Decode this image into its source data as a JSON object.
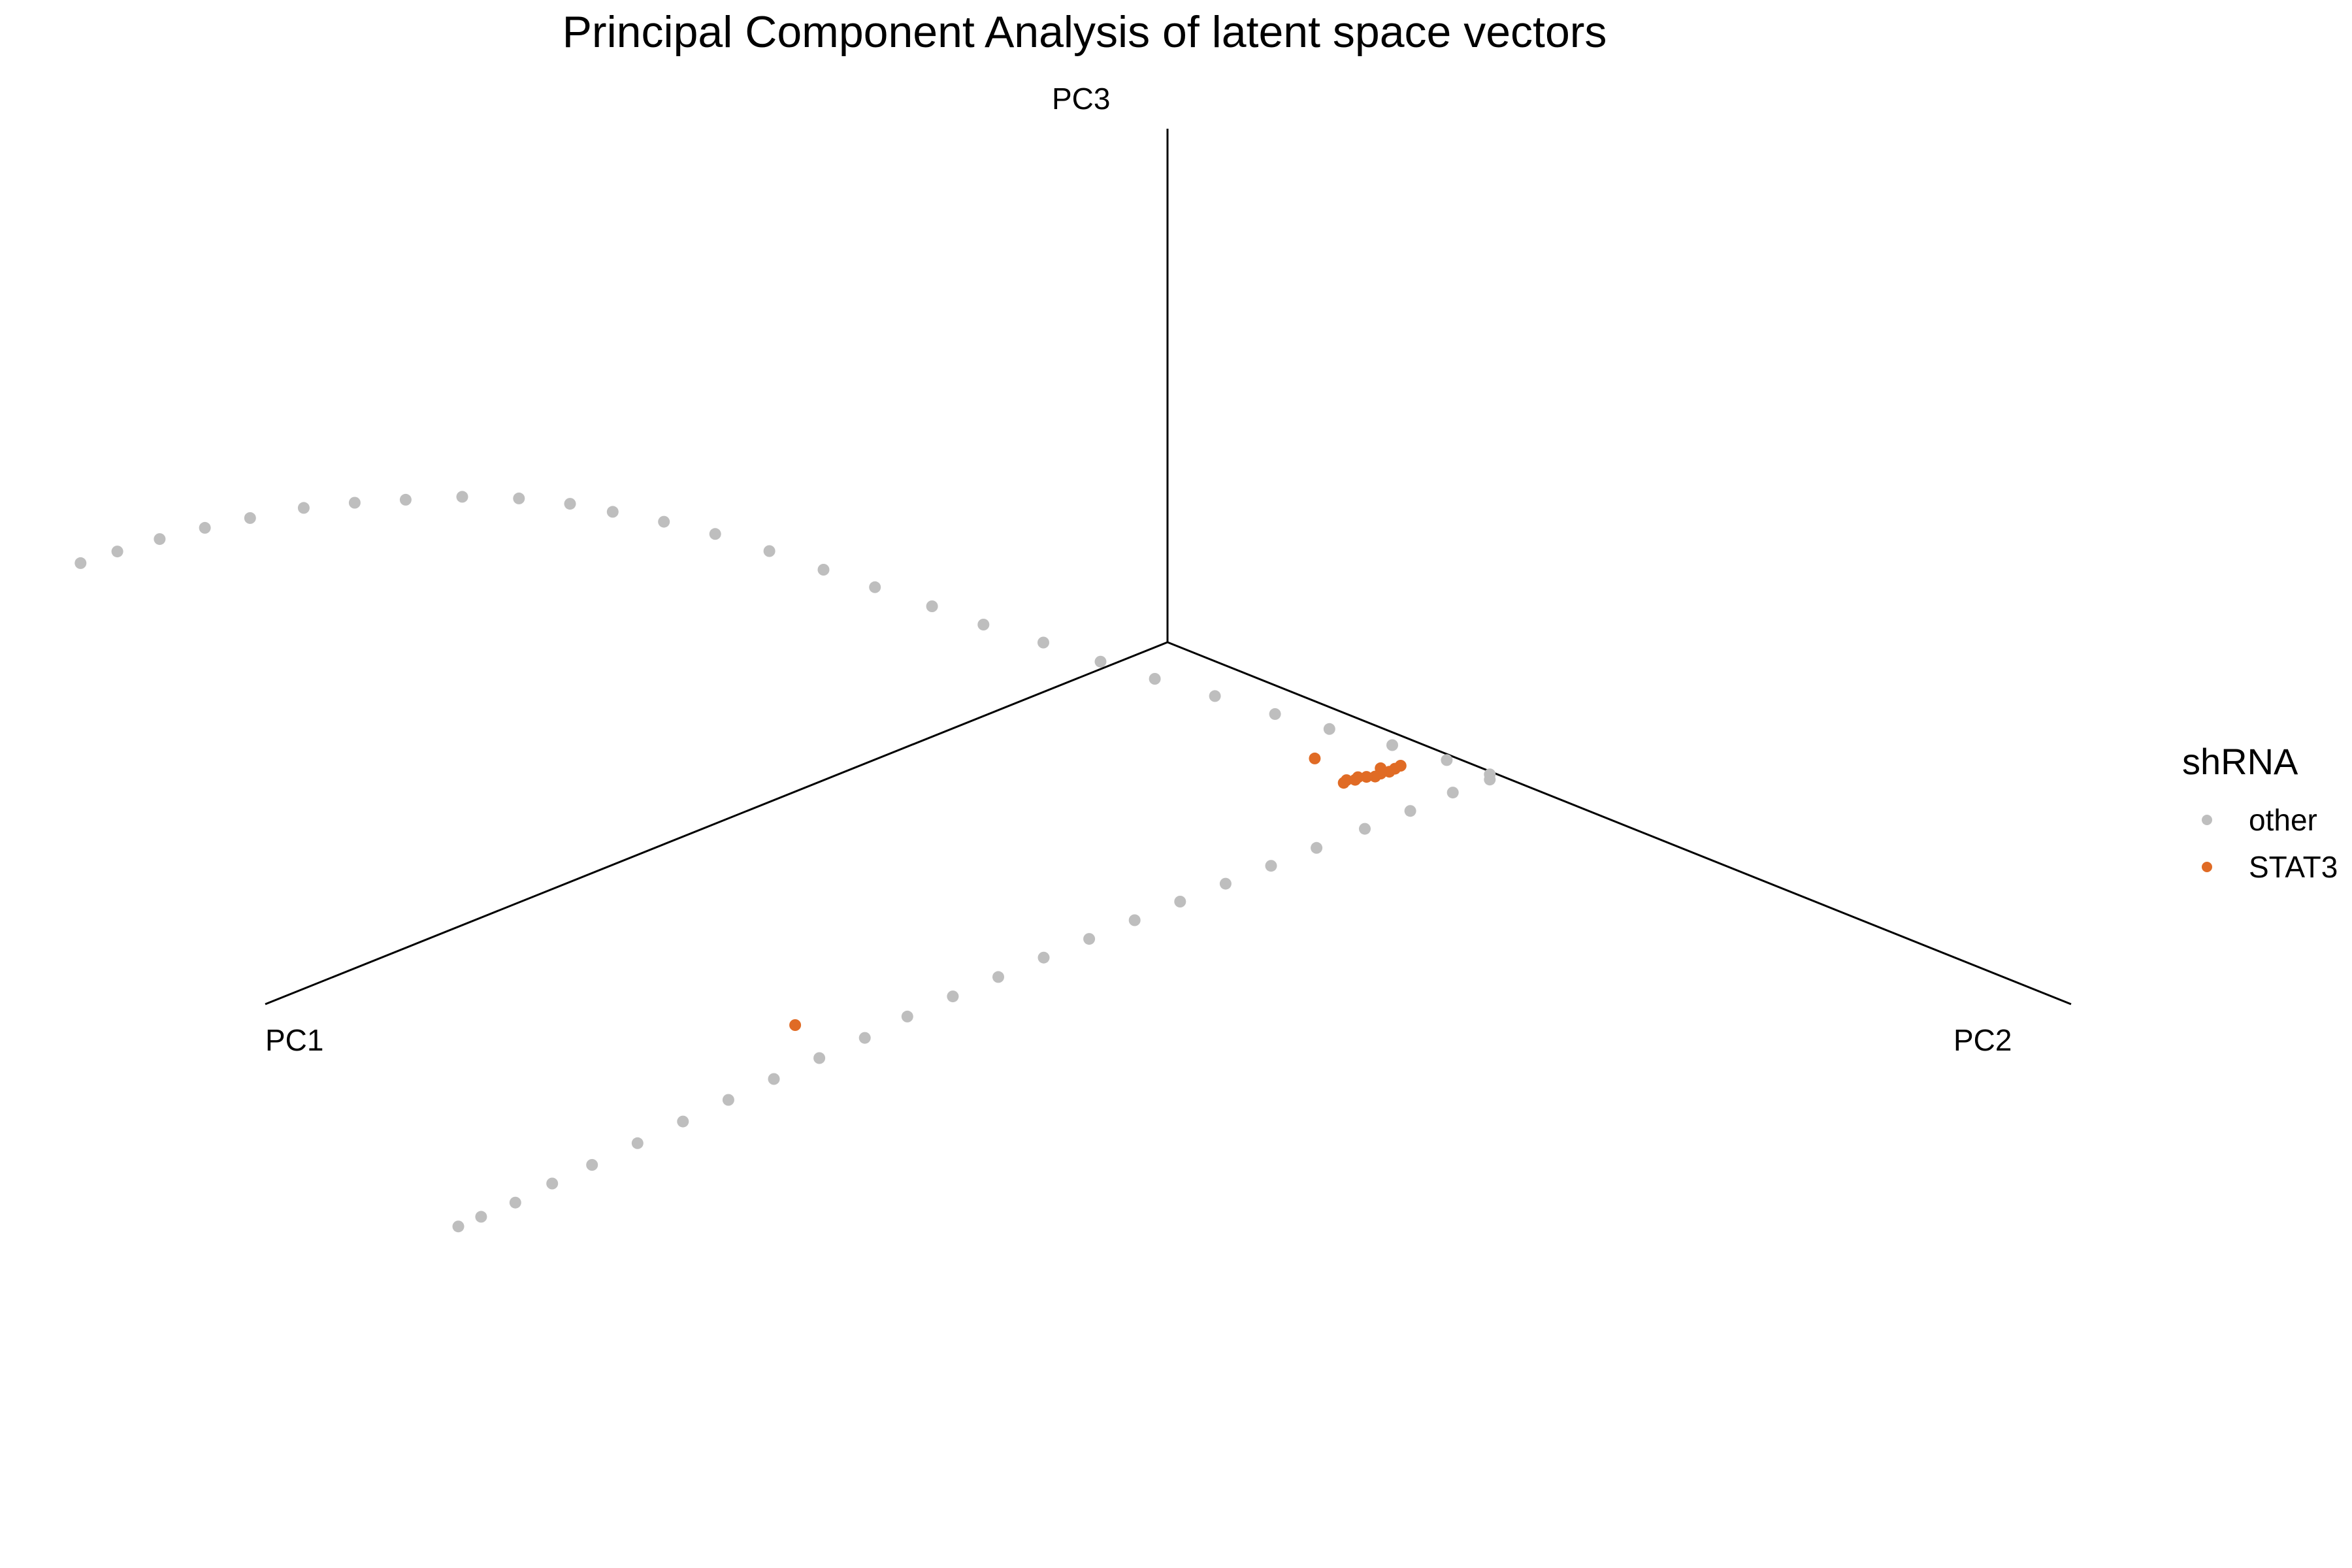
{
  "chart_data": {
    "type": "scatter",
    "projection": "3d",
    "title": "Principal Component Analysis of latent space vectors",
    "axes": {
      "x": "PC1",
      "y": "PC2",
      "z": "PC3"
    },
    "grid": false,
    "legend": {
      "title": "shRNA",
      "placement": "right",
      "entries": [
        {
          "label": "other",
          "color": "#bebebe"
        },
        {
          "label": "STAT3",
          "color": "#e06b25"
        }
      ]
    },
    "series": [
      {
        "name": "other",
        "color": "#bebebe",
        "points": [
          [
            0.03,
            1.12,
            0.05
          ],
          [
            0.12,
            1.06,
            0.28
          ],
          [
            0.24,
            0.99,
            0.55
          ],
          [
            0.39,
            0.92,
            0.88
          ],
          [
            0.52,
            0.86,
            1.18
          ],
          [
            0.66,
            0.79,
            1.52
          ],
          [
            0.8,
            0.72,
            1.85
          ],
          [
            0.93,
            0.66,
            2.18
          ],
          [
            1.07,
            0.6,
            2.55
          ],
          [
            1.22,
            0.54,
            2.92
          ],
          [
            1.35,
            0.49,
            3.28
          ],
          [
            1.49,
            0.43,
            3.65
          ],
          [
            1.62,
            0.38,
            4.0
          ],
          [
            1.76,
            0.33,
            4.38
          ],
          [
            1.9,
            0.28,
            4.74
          ],
          [
            2.04,
            0.24,
            5.05
          ],
          [
            2.18,
            0.2,
            5.33
          ],
          [
            2.3,
            0.17,
            5.57
          ],
          [
            2.45,
            0.14,
            5.82
          ],
          [
            2.62,
            0.11,
            6.05
          ],
          [
            2.8,
            0.09,
            6.25
          ],
          [
            2.96,
            0.07,
            6.42
          ],
          [
            3.12,
            0.05,
            6.56
          ],
          [
            3.3,
            0.04,
            6.68
          ],
          [
            3.45,
            0.03,
            6.76
          ],
          [
            3.6,
            0.02,
            6.82
          ],
          [
            3.74,
            0.01,
            6.85
          ],
          [
            3.86,
            0.0,
            6.86
          ],
          [
            0.03,
            1.12,
            -0.02
          ],
          [
            0.13,
            1.09,
            -0.09
          ],
          [
            0.26,
            1.07,
            -0.17
          ],
          [
            0.39,
            1.04,
            -0.26
          ],
          [
            0.53,
            1.01,
            -0.35
          ],
          [
            0.66,
            0.98,
            -0.44
          ],
          [
            0.79,
            0.95,
            -0.53
          ],
          [
            0.92,
            0.92,
            -0.62
          ],
          [
            1.05,
            0.89,
            -0.72
          ],
          [
            1.18,
            0.86,
            -0.82
          ],
          [
            1.31,
            0.83,
            -0.92
          ],
          [
            1.44,
            0.8,
            -1.03
          ],
          [
            1.57,
            0.77,
            -1.14
          ],
          [
            1.7,
            0.74,
            -1.26
          ],
          [
            1.83,
            0.72,
            -1.38
          ],
          [
            1.96,
            0.69,
            -1.5
          ],
          [
            2.09,
            0.66,
            -1.63
          ],
          [
            2.22,
            0.63,
            -1.76
          ],
          [
            2.35,
            0.6,
            -1.9
          ],
          [
            2.48,
            0.57,
            -2.04
          ],
          [
            2.61,
            0.54,
            -2.18
          ],
          [
            2.72,
            0.51,
            -2.31
          ],
          [
            2.83,
            0.49,
            -2.43
          ],
          [
            2.92,
            0.46,
            -2.53
          ],
          [
            2.98,
            0.44,
            -2.6
          ],
          [
            4.6,
            0.0,
            -3.5
          ]
        ]
      },
      {
        "name": "STAT3",
        "color": "#e06b25",
        "points": [
          [
            0.2,
            0.98,
            0.2
          ],
          [
            0.22,
            0.98,
            0.19
          ],
          [
            0.24,
            0.98,
            0.18
          ],
          [
            0.26,
            0.97,
            0.17
          ],
          [
            0.25,
            0.96,
            0.21
          ],
          [
            0.28,
            0.97,
            0.16
          ],
          [
            0.3,
            0.96,
            0.17
          ],
          [
            0.32,
            0.95,
            0.18
          ],
          [
            0.33,
            0.95,
            0.16
          ],
          [
            0.35,
            0.94,
            0.17
          ],
          [
            0.36,
            0.94,
            0.15
          ],
          [
            0.4,
            0.88,
            0.44
          ],
          [
            1.92,
            0.57,
            -1.31
          ]
        ]
      }
    ]
  }
}
